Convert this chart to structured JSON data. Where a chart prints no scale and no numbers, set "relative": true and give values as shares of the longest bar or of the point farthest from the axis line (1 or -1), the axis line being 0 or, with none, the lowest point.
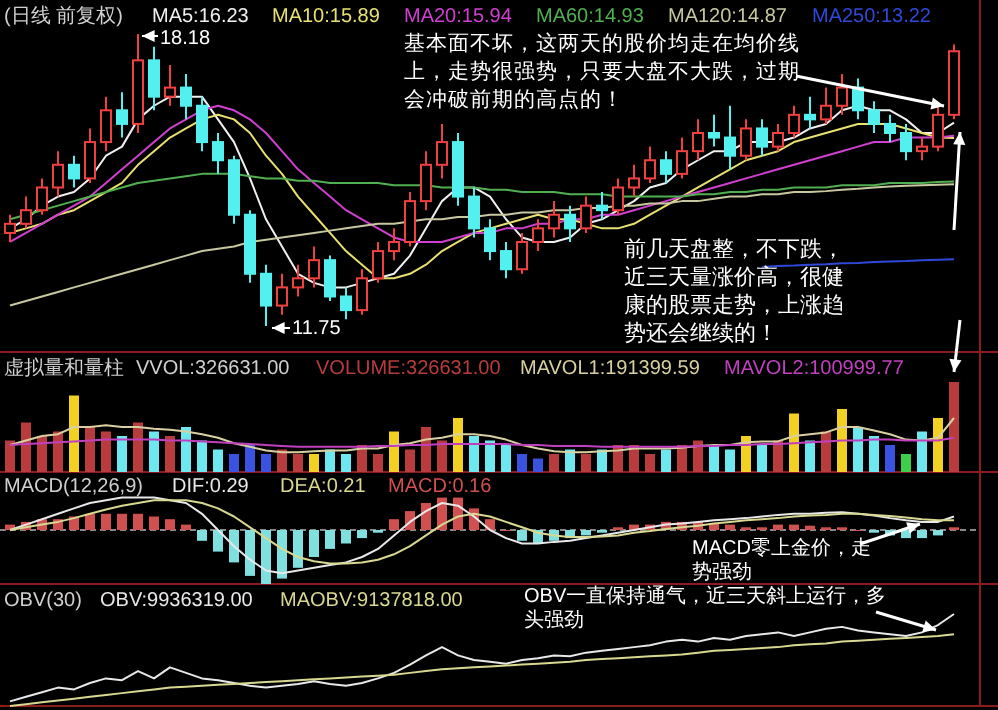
{
  "chart_data": [
    {
      "type": "candlestick",
      "title": "(日线 前复权)",
      "categories": [
        null,
        null,
        null,
        null,
        null,
        null,
        null,
        null,
        null,
        null,
        null,
        null,
        null,
        null,
        null,
        null,
        null,
        null,
        null,
        null,
        null,
        null,
        null,
        null,
        null,
        null,
        null,
        null,
        null,
        null,
        null,
        null,
        null,
        null,
        null,
        null,
        null,
        null,
        null,
        null,
        null,
        null,
        null,
        null,
        null,
        null,
        null,
        null,
        null,
        null,
        null,
        null,
        null,
        null,
        null,
        null,
        null,
        null,
        null,
        null
      ],
      "ohlc": [
        [
          13.8,
          14.2,
          13.6,
          14.0
        ],
        [
          14.0,
          14.6,
          13.9,
          14.3
        ],
        [
          14.3,
          15.0,
          14.2,
          14.8
        ],
        [
          14.8,
          15.6,
          14.6,
          15.3
        ],
        [
          15.3,
          15.5,
          14.8,
          15.0
        ],
        [
          15.0,
          16.1,
          14.9,
          15.8
        ],
        [
          15.8,
          16.8,
          15.6,
          16.5
        ],
        [
          16.5,
          16.9,
          15.9,
          16.2
        ],
        [
          16.2,
          18.18,
          16.0,
          17.6
        ],
        [
          17.6,
          17.9,
          16.5,
          16.8
        ],
        [
          16.8,
          17.5,
          16.6,
          17.0
        ],
        [
          17.0,
          17.3,
          16.3,
          16.6
        ],
        [
          16.6,
          16.8,
          15.6,
          15.8
        ],
        [
          15.8,
          16.0,
          15.1,
          15.4
        ],
        [
          15.4,
          15.5,
          14.0,
          14.2
        ],
        [
          14.2,
          14.3,
          12.7,
          12.9
        ],
        [
          12.9,
          13.1,
          11.75,
          12.2
        ],
        [
          12.2,
          12.9,
          12.0,
          12.6
        ],
        [
          12.6,
          13.1,
          12.4,
          12.8
        ],
        [
          12.8,
          13.5,
          12.6,
          13.2
        ],
        [
          13.2,
          13.3,
          12.3,
          12.4
        ],
        [
          12.4,
          12.6,
          11.9,
          12.1
        ],
        [
          12.1,
          13.0,
          12.0,
          12.8
        ],
        [
          12.8,
          13.6,
          12.7,
          13.4
        ],
        [
          13.4,
          13.9,
          13.2,
          13.6
        ],
        [
          13.6,
          14.7,
          13.5,
          14.5
        ],
        [
          14.5,
          15.6,
          14.3,
          15.3
        ],
        [
          15.3,
          16.2,
          15.0,
          15.8
        ],
        [
          15.8,
          16.0,
          14.4,
          14.6
        ],
        [
          14.6,
          14.8,
          13.7,
          13.9
        ],
        [
          13.9,
          14.1,
          13.2,
          13.4
        ],
        [
          13.4,
          13.6,
          12.8,
          13.0
        ],
        [
          13.0,
          13.8,
          12.9,
          13.6
        ],
        [
          13.6,
          14.1,
          13.4,
          13.9
        ],
        [
          13.9,
          14.5,
          13.7,
          14.2
        ],
        [
          14.2,
          14.4,
          13.6,
          13.9
        ],
        [
          13.9,
          14.6,
          13.8,
          14.4
        ],
        [
          14.4,
          14.7,
          14.1,
          14.3
        ],
        [
          14.3,
          15.0,
          14.2,
          14.8
        ],
        [
          14.8,
          15.3,
          14.6,
          15.0
        ],
        [
          15.0,
          15.7,
          14.9,
          15.4
        ],
        [
          15.4,
          15.6,
          14.9,
          15.1
        ],
        [
          15.1,
          15.9,
          15.0,
          15.6
        ],
        [
          15.6,
          16.3,
          15.4,
          16.0
        ],
        [
          16.0,
          16.4,
          15.7,
          15.9
        ],
        [
          15.9,
          16.6,
          15.2,
          15.5
        ],
        [
          15.5,
          16.3,
          15.4,
          16.1
        ],
        [
          16.1,
          16.3,
          15.5,
          15.7
        ],
        [
          15.7,
          16.2,
          15.6,
          16.0
        ],
        [
          16.0,
          16.6,
          15.9,
          16.4
        ],
        [
          16.4,
          16.8,
          16.1,
          16.3
        ],
        [
          16.3,
          17.0,
          16.2,
          16.6
        ],
        [
          16.6,
          17.3,
          16.4,
          17.0
        ],
        [
          17.0,
          17.2,
          16.3,
          16.5
        ],
        [
          16.5,
          16.7,
          16.0,
          16.2
        ],
        [
          16.2,
          16.4,
          15.8,
          16.0
        ],
        [
          16.0,
          16.2,
          15.4,
          15.6
        ],
        [
          15.6,
          15.9,
          15.4,
          15.7
        ],
        [
          15.7,
          16.6,
          15.6,
          16.4
        ],
        [
          16.4,
          17.95,
          16.3,
          17.8
        ]
      ],
      "colors": [
        "#f04040",
        "#f04040",
        "#f04040",
        "#f04040",
        "#54f0f0",
        "#f04040",
        "#f04040",
        "#54f0f0",
        "#f04040",
        "#54f0f0",
        "#f04040",
        "#54f0f0",
        "#54f0f0",
        "#54f0f0",
        "#54f0f0",
        "#54f0f0",
        "#54f0f0",
        "#f04040",
        "#f04040",
        "#f04040",
        "#54f0f0",
        "#54f0f0",
        "#f04040",
        "#f04040",
        "#f04040",
        "#f04040",
        "#f04040",
        "#f04040",
        "#54f0f0",
        "#54f0f0",
        "#54f0f0",
        "#54f0f0",
        "#f04040",
        "#f04040",
        "#f04040",
        "#54f0f0",
        "#f04040",
        "#54f0f0",
        "#f04040",
        "#f04040",
        "#f04040",
        "#54f0f0",
        "#f04040",
        "#f04040",
        "#54f0f0",
        "#54f0f0",
        "#f04040",
        "#54f0f0",
        "#f04040",
        "#f04040",
        "#54f0f0",
        "#f04040",
        "#f04040",
        "#54f0f0",
        "#54f0f0",
        "#54f0f0",
        "#54f0f0",
        "#f04040",
        "#f04040",
        "#f04040"
      ],
      "series": [
        {
          "name": "MA5:16.23",
          "type": "line",
          "color": "#f0f0f0",
          "values": [
            13.9,
            14.1,
            14.4,
            14.6,
            14.7,
            15.0,
            15.5,
            15.7,
            16.3,
            16.6,
            16.8,
            16.8,
            16.8,
            16.3,
            15.8,
            15.0,
            14.1,
            13.5,
            12.9,
            12.7,
            12.6,
            12.6,
            12.7,
            12.8,
            12.9,
            13.3,
            13.9,
            14.5,
            14.8,
            14.8,
            14.6,
            14.1,
            13.7,
            13.6,
            13.6,
            13.7,
            14.0,
            14.1,
            14.3,
            14.5,
            14.8,
            14.9,
            15.2,
            15.4,
            15.6,
            15.6,
            15.8,
            15.8,
            15.8,
            15.9,
            16.1,
            16.2,
            16.5,
            16.6,
            16.5,
            16.5,
            16.3,
            16.0,
            16.0,
            16.23
          ]
        },
        {
          "name": "MA10:15.89",
          "type": "line",
          "color": "#e8e070",
          "values": [
            13.8,
            13.9,
            14.0,
            14.2,
            14.3,
            14.5,
            14.7,
            14.9,
            15.3,
            15.6,
            15.9,
            16.1,
            16.3,
            16.4,
            16.3,
            16.0,
            15.5,
            15.1,
            14.6,
            14.2,
            13.8,
            13.4,
            13.1,
            12.8,
            12.8,
            12.9,
            13.1,
            13.4,
            13.6,
            13.8,
            13.9,
            14.0,
            14.1,
            14.2,
            14.1,
            14.1,
            14.0,
            13.9,
            13.9,
            14.0,
            14.2,
            14.4,
            14.6,
            14.8,
            15.0,
            15.2,
            15.4,
            15.5,
            15.6,
            15.8,
            15.9,
            16.0,
            16.1,
            16.2,
            16.2,
            16.2,
            16.1,
            16.0,
            15.9,
            15.89
          ]
        },
        {
          "name": "MA20:15.94",
          "type": "line",
          "color": "#d040d0",
          "values": [
            13.6,
            13.8,
            14.0,
            14.2,
            14.4,
            14.6,
            14.9,
            15.2,
            15.5,
            15.8,
            16.1,
            16.3,
            16.5,
            16.6,
            16.5,
            16.3,
            16.0,
            15.6,
            15.2,
            14.9,
            14.6,
            14.3,
            14.1,
            13.9,
            13.7,
            13.6,
            13.6,
            13.6,
            13.7,
            13.8,
            13.8,
            13.9,
            13.9,
            14.0,
            14.0,
            14.1,
            14.1,
            14.2,
            14.2,
            14.3,
            14.4,
            14.5,
            14.6,
            14.7,
            14.8,
            14.9,
            15.0,
            15.1,
            15.2,
            15.3,
            15.4,
            15.5,
            15.6,
            15.7,
            15.8,
            15.8,
            15.9,
            15.9,
            15.9,
            15.94
          ]
        },
        {
          "name": "MA60:14.93",
          "type": "line",
          "color": "#50b050",
          "values": [
            14.1,
            14.2,
            14.3,
            14.4,
            14.5,
            14.6,
            14.7,
            14.8,
            14.9,
            14.95,
            15.0,
            15.05,
            15.1,
            15.1,
            15.1,
            15.05,
            15.0,
            15.0,
            14.95,
            14.95,
            14.9,
            14.9,
            14.9,
            14.9,
            14.85,
            14.85,
            14.85,
            14.8,
            14.8,
            14.8,
            14.75,
            14.75,
            14.7,
            14.7,
            14.7,
            14.65,
            14.65,
            14.65,
            14.6,
            14.6,
            14.6,
            14.6,
            14.6,
            14.65,
            14.65,
            14.7,
            14.7,
            14.75,
            14.75,
            14.8,
            14.8,
            14.8,
            14.85,
            14.85,
            14.85,
            14.9,
            14.9,
            14.9,
            14.92,
            14.93
          ]
        },
        {
          "name": "MA120:14.87",
          "type": "line",
          "color": "#c8c8a0",
          "values": [
            12.2,
            12.3,
            12.4,
            12.5,
            12.6,
            12.7,
            12.8,
            12.9,
            13.0,
            13.1,
            13.2,
            13.3,
            13.4,
            13.45,
            13.5,
            13.6,
            13.65,
            13.7,
            13.75,
            13.8,
            13.85,
            13.9,
            13.95,
            14.0,
            14.0,
            14.05,
            14.1,
            14.1,
            14.15,
            14.15,
            14.2,
            14.2,
            14.25,
            14.25,
            14.3,
            14.3,
            14.35,
            14.35,
            14.4,
            14.4,
            14.45,
            14.45,
            14.5,
            14.5,
            14.55,
            14.6,
            14.6,
            14.65,
            14.65,
            14.7,
            14.7,
            14.72,
            14.75,
            14.77,
            14.8,
            14.82,
            14.84,
            14.85,
            14.86,
            14.87
          ]
        },
        {
          "name": "MA250:13.22",
          "type": "line",
          "color": "#3048d8",
          "values": [
            null,
            null,
            null,
            null,
            null,
            null,
            null,
            null,
            null,
            null,
            null,
            null,
            null,
            null,
            null,
            null,
            null,
            null,
            null,
            null,
            null,
            null,
            null,
            null,
            null,
            null,
            null,
            null,
            null,
            null,
            null,
            null,
            null,
            null,
            null,
            null,
            null,
            null,
            null,
            null,
            null,
            null,
            null,
            null,
            null,
            null,
            null,
            13.05,
            13.07,
            13.08,
            13.1,
            13.11,
            13.13,
            13.14,
            13.16,
            13.17,
            13.18,
            13.2,
            13.21,
            13.22
          ]
        }
      ],
      "annotations": [
        "基本面不坏，这两天的股价均走在均价线上，走势很强势，只要大盘不大跌，过期会冲破前期的高点的！",
        "前几天盘整，不下跌，近三天量涨价高，很健康的股票走势，上涨趋势还会继续的！",
        "18.18",
        "11.75"
      ]
    },
    {
      "type": "bar",
      "relative": true,
      "title": "虚拟量和量柱",
      "subtitle": "VVOL:326631.00",
      "categories": [
        null,
        null,
        null,
        null,
        null,
        null,
        null,
        null,
        null,
        null,
        null,
        null,
        null,
        null,
        null,
        null,
        null,
        null,
        null,
        null,
        null,
        null,
        null,
        null,
        null,
        null,
        null,
        null,
        null,
        null,
        null,
        null,
        null,
        null,
        null,
        null,
        null,
        null,
        null,
        null,
        null,
        null,
        null,
        null,
        null,
        null,
        null,
        null,
        null,
        null,
        null,
        null,
        null,
        null,
        null,
        null,
        null,
        null,
        null,
        null
      ],
      "series": [
        {
          "name": "VOLUME:326631.00",
          "type": "bar",
          "colors": [
            "#b83c3c",
            "#b83c3c",
            "#b83c3c",
            "#b83c3c",
            "#f2d024",
            "#b83c3c",
            "#b83c3c",
            "#6ee8f0",
            "#b83c3c",
            "#6ee8f0",
            "#b83c3c",
            "#6ee8f0",
            "#6ee8f0",
            "#6ee8f0",
            "#3a52e0",
            "#3a52e0",
            "#3a52e0",
            "#b83c3c",
            "#b83c3c",
            "#f2d024",
            "#6ee8f0",
            "#6ee8f0",
            "#b83c3c",
            "#b83c3c",
            "#f2d024",
            "#b83c3c",
            "#b83c3c",
            "#b83c3c",
            "#f2d024",
            "#6ee8f0",
            "#6ee8f0",
            "#6ee8f0",
            "#3a52e0",
            "#3a52e0",
            "#b83c3c",
            "#6ee8f0",
            "#b83c3c",
            "#6ee8f0",
            "#b83c3c",
            "#b83c3c",
            "#b83c3c",
            "#6ee8f0",
            "#b83c3c",
            "#b83c3c",
            "#6ee8f0",
            "#6ee8f0",
            "#f2d024",
            "#6ee8f0",
            "#b83c3c",
            "#f2d024",
            "#6ee8f0",
            "#b83c3c",
            "#f2d024",
            "#6ee8f0",
            "#6ee8f0",
            "#3a52e0",
            "#3ccf4a",
            "#6ee8f0",
            "#f2d024",
            "#b83c3c"
          ],
          "values": [
            0.35,
            0.55,
            0.4,
            0.45,
            0.85,
            0.5,
            0.45,
            0.4,
            0.55,
            0.45,
            0.4,
            0.5,
            0.35,
            0.25,
            0.2,
            0.3,
            0.2,
            0.25,
            0.2,
            0.2,
            0.25,
            0.2,
            0.3,
            0.2,
            0.45,
            0.25,
            0.5,
            0.35,
            0.6,
            0.4,
            0.35,
            0.3,
            0.2,
            0.15,
            0.2,
            0.25,
            0.2,
            0.25,
            0.3,
            0.3,
            0.2,
            0.25,
            0.3,
            0.35,
            0.3,
            0.25,
            0.4,
            0.3,
            0.35,
            0.65,
            0.35,
            0.45,
            0.7,
            0.5,
            0.4,
            0.3,
            0.2,
            0.45,
            0.6,
            1
          ]
        },
        {
          "name": "MAVOL1:191399.59",
          "type": "line",
          "color": "#d8d0a0",
          "values": [
            0.3,
            0.35,
            0.4,
            0.42,
            0.5,
            0.5,
            0.52,
            0.5,
            0.5,
            0.48,
            0.47,
            0.45,
            0.42,
            0.38,
            0.32,
            0.28,
            0.24,
            0.22,
            0.22,
            0.23,
            0.24,
            0.24,
            0.26,
            0.26,
            0.3,
            0.32,
            0.36,
            0.38,
            0.42,
            0.42,
            0.4,
            0.36,
            0.3,
            0.26,
            0.23,
            0.22,
            0.22,
            0.23,
            0.24,
            0.26,
            0.26,
            0.26,
            0.27,
            0.29,
            0.3,
            0.3,
            0.33,
            0.34,
            0.34,
            0.4,
            0.42,
            0.44,
            0.5,
            0.5,
            0.46,
            0.42,
            0.36,
            0.35,
            0.38,
            0.6
          ]
        },
        {
          "name": "MAVOL2:100999.77",
          "type": "line",
          "color": "#c040c0",
          "values": [
            0.3,
            0.31,
            0.32,
            0.33,
            0.34,
            0.35,
            0.36,
            0.36,
            0.36,
            0.36,
            0.35,
            0.35,
            0.34,
            0.33,
            0.32,
            0.31,
            0.3,
            0.29,
            0.28,
            0.28,
            0.28,
            0.28,
            0.28,
            0.29,
            0.29,
            0.3,
            0.3,
            0.31,
            0.31,
            0.31,
            0.31,
            0.31,
            0.3,
            0.3,
            0.29,
            0.29,
            0.29,
            0.28,
            0.28,
            0.28,
            0.28,
            0.28,
            0.28,
            0.29,
            0.29,
            0.3,
            0.3,
            0.31,
            0.31,
            0.32,
            0.33,
            0.34,
            0.35,
            0.35,
            0.36,
            0.36,
            0.35,
            0.35,
            0.35,
            0.38
          ]
        }
      ]
    },
    {
      "type": "bar",
      "relative": true,
      "title": "MACD(12,26,9)",
      "ref_lines": [
        {
          "axis": "y",
          "value": 0,
          "color": "#888888",
          "line_style": "dashed"
        }
      ],
      "categories": [
        null,
        null,
        null,
        null,
        null,
        null,
        null,
        null,
        null,
        null,
        null,
        null,
        null,
        null,
        null,
        null,
        null,
        null,
        null,
        null,
        null,
        null,
        null,
        null,
        null,
        null,
        null,
        null,
        null,
        null,
        null,
        null,
        null,
        null,
        null,
        null,
        null,
        null,
        null,
        null,
        null,
        null,
        null,
        null,
        null,
        null,
        null,
        null,
        null,
        null,
        null,
        null,
        null,
        null,
        null,
        null,
        null,
        null,
        null,
        null
      ],
      "series": [
        {
          "name": "DIF:0.29",
          "type": "line",
          "color": "#e8e8e8",
          "values": [
            0,
            0.1,
            0.2,
            0.3,
            0.4,
            0.5,
            0.55,
            0.6,
            0.6,
            0.6,
            0.55,
            0.5,
            0.3,
            0.0,
            -0.3,
            -0.55,
            -0.75,
            -0.8,
            -0.75,
            -0.7,
            -0.65,
            -0.6,
            -0.5,
            -0.35,
            -0.1,
            0.15,
            0.35,
            0.5,
            0.45,
            0.25,
            0.0,
            -0.15,
            -0.25,
            -0.25,
            -0.22,
            -0.2,
            -0.15,
            -0.1,
            -0.05,
            0.0,
            0.05,
            0.1,
            0.12,
            0.15,
            0.18,
            0.2,
            0.22,
            0.25,
            0.28,
            0.3,
            0.3,
            0.32,
            0.33,
            0.3,
            0.27,
            0.22,
            0.18,
            0.15,
            0.15,
            0.25
          ]
        },
        {
          "name": "DEA:0.21",
          "type": "line",
          "color": "#d8d890",
          "values": [
            0,
            0.05,
            0.1,
            0.15,
            0.22,
            0.3,
            0.38,
            0.45,
            0.5,
            0.55,
            0.55,
            0.55,
            0.5,
            0.4,
            0.25,
            0.05,
            -0.15,
            -0.35,
            -0.5,
            -0.58,
            -0.62,
            -0.62,
            -0.6,
            -0.55,
            -0.45,
            -0.3,
            -0.1,
            0.1,
            0.25,
            0.3,
            0.25,
            0.15,
            0.05,
            -0.05,
            -0.1,
            -0.13,
            -0.13,
            -0.12,
            -0.1,
            -0.05,
            -0.02,
            0.02,
            0.05,
            0.08,
            0.12,
            0.15,
            0.18,
            0.2,
            0.22,
            0.25,
            0.27,
            0.28,
            0.3,
            0.3,
            0.28,
            0.26,
            0.23,
            0.2,
            0.18,
            0.18
          ]
        },
        {
          "name": "MACD:0.16",
          "type": "bar",
          "colors": [
            "#d05050",
            "#d05050",
            "#d05050",
            "#d05050",
            "#d05050",
            "#d05050",
            "#d05050",
            "#d05050",
            "#d05050",
            "#d05050",
            "#d05050",
            "#d05050",
            "#80e0e0",
            "#80e0e0",
            "#80e0e0",
            "#80e0e0",
            "#80e0e0",
            "#80e0e0",
            "#80e0e0",
            "#80e0e0",
            "#80e0e0",
            "#80e0e0",
            "#80e0e0",
            "#80e0e0",
            "#d05050",
            "#d05050",
            "#d05050",
            "#d05050",
            "#d05050",
            "#d05050",
            "#d05050",
            "#d05050",
            "#80e0e0",
            "#80e0e0",
            "#80e0e0",
            "#80e0e0",
            "#80e0e0",
            "#80e0e0",
            "#d05050",
            "#d05050",
            "#d05050",
            "#d05050",
            "#d05050",
            "#d05050",
            "#d05050",
            "#d05050",
            "#d05050",
            "#d05050",
            "#d05050",
            "#d05050",
            "#d05050",
            "#d05050",
            "#d05050",
            "#d05050",
            "#80e0e0",
            "#80e0e0",
            "#80e0e0",
            "#80e0e0",
            "#80e0e0",
            "#d05050"
          ],
          "values": [
            0.1,
            0.15,
            0.2,
            0.2,
            0.25,
            0.3,
            0.3,
            0.3,
            0.3,
            0.25,
            0.2,
            0.1,
            -0.2,
            -0.4,
            -0.6,
            -0.85,
            -1,
            -0.9,
            -0.7,
            -0.5,
            -0.35,
            -0.25,
            -0.15,
            -0.05,
            0.2,
            0.35,
            0.5,
            0.6,
            0.6,
            0.4,
            0.2,
            0,
            -0.2,
            -0.25,
            -0.2,
            -0.15,
            -0.1,
            -0.05,
            0.05,
            0.1,
            0.1,
            0.15,
            0.15,
            0.15,
            0.12,
            0.1,
            0.05,
            0.05,
            0.1,
            0.1,
            0.08,
            0.05,
            0.05,
            0,
            -0.05,
            -0.1,
            -0.15,
            -0.15,
            -0.1,
            0.05
          ]
        }
      ],
      "annotations": [
        "MACD零上金价，走势强劲"
      ]
    },
    {
      "type": "line",
      "relative": true,
      "title": "OBV(30)",
      "categories": [
        null,
        null,
        null,
        null,
        null,
        null,
        null,
        null,
        null,
        null,
        null,
        null,
        null,
        null,
        null,
        null,
        null,
        null,
        null,
        null,
        null,
        null,
        null,
        null,
        null,
        null,
        null,
        null,
        null,
        null,
        null,
        null,
        null,
        null,
        null,
        null,
        null,
        null,
        null,
        null,
        null,
        null,
        null,
        null,
        null,
        null,
        null,
        null,
        null,
        null,
        null,
        null,
        null,
        null,
        null,
        null,
        null,
        null,
        null,
        null
      ],
      "series": [
        {
          "name": "OBV:9936319.00",
          "color": "#e8e8e8",
          "values": [
            0.05,
            0.1,
            0.15,
            0.2,
            0.18,
            0.25,
            0.3,
            0.28,
            0.38,
            0.3,
            0.42,
            0.36,
            0.3,
            0.28,
            0.25,
            0.22,
            0.2,
            0.22,
            0.24,
            0.27,
            0.24,
            0.22,
            0.25,
            0.3,
            0.36,
            0.45,
            0.55,
            0.64,
            0.55,
            0.5,
            0.48,
            0.46,
            0.5,
            0.52,
            0.55,
            0.54,
            0.58,
            0.6,
            0.62,
            0.64,
            0.66,
            0.7,
            0.72,
            0.7,
            0.74,
            0.72,
            0.76,
            0.78,
            0.8,
            0.76,
            0.8,
            0.84,
            0.86,
            0.82,
            0.8,
            0.78,
            0.76,
            0.8,
            0.88,
            1
          ]
        },
        {
          "name": "MAOBV:9137818.00",
          "color": "#d8d890",
          "values": [
            0,
            0.02,
            0.04,
            0.06,
            0.08,
            0.1,
            0.12,
            0.14,
            0.16,
            0.18,
            0.2,
            0.21,
            0.22,
            0.23,
            0.24,
            0.25,
            0.26,
            0.27,
            0.28,
            0.29,
            0.3,
            0.31,
            0.32,
            0.33,
            0.34,
            0.36,
            0.38,
            0.4,
            0.41,
            0.42,
            0.43,
            0.44,
            0.45,
            0.46,
            0.47,
            0.48,
            0.5,
            0.51,
            0.52,
            0.53,
            0.54,
            0.55,
            0.56,
            0.58,
            0.6,
            0.61,
            0.62,
            0.63,
            0.64,
            0.66,
            0.67,
            0.68,
            0.7,
            0.71,
            0.72,
            0.73,
            0.74,
            0.75,
            0.76,
            0.78
          ]
        }
      ],
      "annotations": [
        "OBV一直保持通气，近三天斜上运行，多头强劲"
      ]
    }
  ]
}
